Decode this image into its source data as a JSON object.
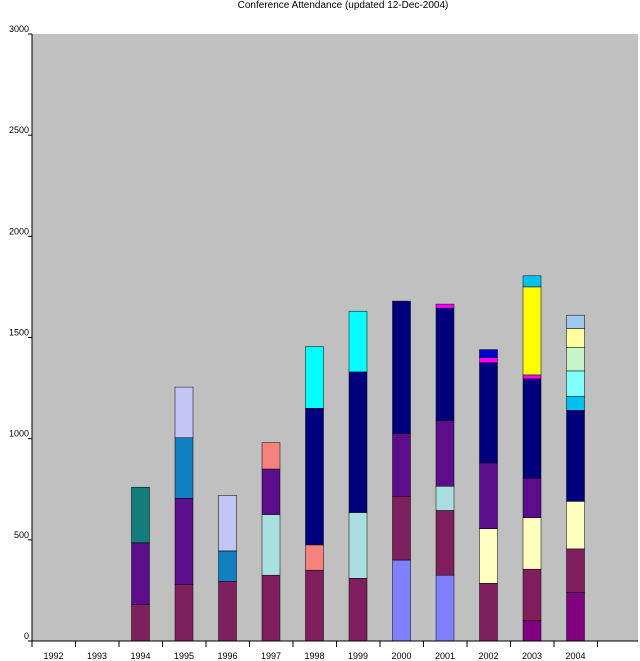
{
  "chart_data": {
    "type": "bar",
    "stacked": true,
    "title": "Conference Attendance (updated 12-Dec-2004)",
    "xlabel": "",
    "ylabel": "",
    "ylim": [
      0,
      3000
    ],
    "yticks": [
      0,
      500,
      1000,
      1500,
      2000,
      2500,
      3000
    ],
    "grid": false,
    "legend": "none",
    "colors": {
      "plot_background": "#c0c0c0",
      "axis": "#000000"
    },
    "categories": [
      "1992",
      "1993",
      "1994",
      "1995",
      "1996",
      "1997",
      "1998",
      "1999",
      "2000",
      "2001",
      "2002",
      "2003",
      "2004"
    ],
    "stacks": [
      {
        "category": "1992",
        "segments": []
      },
      {
        "category": "1993",
        "segments": []
      },
      {
        "category": "1994",
        "segments": [
          {
            "value": 180,
            "color": "#7f1f5e"
          },
          {
            "value": 305,
            "color": "#5c0d8a"
          },
          {
            "value": 275,
            "color": "#137d7d"
          }
        ]
      },
      {
        "category": "1995",
        "segments": [
          {
            "value": 280,
            "color": "#7f1f5e"
          },
          {
            "value": 425,
            "color": "#5c0d8a"
          },
          {
            "value": 300,
            "color": "#1080c0"
          },
          {
            "value": 250,
            "color": "#c4c4f5"
          }
        ]
      },
      {
        "category": "1996",
        "segments": [
          {
            "value": 295,
            "color": "#7f1f5e"
          },
          {
            "value": 150,
            "color": "#1080c0"
          },
          {
            "value": 275,
            "color": "#c4c4f5"
          }
        ]
      },
      {
        "category": "1997",
        "segments": [
          {
            "value": 325,
            "color": "#7f1f5e"
          },
          {
            "value": 300,
            "color": "#aadfe0"
          },
          {
            "value": 225,
            "color": "#5c0d8a"
          },
          {
            "value": 130,
            "color": "#f4837d"
          }
        ]
      },
      {
        "category": "1998",
        "segments": [
          {
            "value": 350,
            "color": "#7f1f5e"
          },
          {
            "value": 125,
            "color": "#f4837d"
          },
          {
            "value": 675,
            "color": "#00007f"
          },
          {
            "value": 305,
            "color": "#00ffff"
          }
        ]
      },
      {
        "category": "1999",
        "segments": [
          {
            "value": 310,
            "color": "#7f1f5e"
          },
          {
            "value": 325,
            "color": "#aadfe0"
          },
          {
            "value": 695,
            "color": "#00007f"
          },
          {
            "value": 300,
            "color": "#00ffff"
          }
        ]
      },
      {
        "category": "2000",
        "segments": [
          {
            "value": 400,
            "color": "#8080ff"
          },
          {
            "value": 315,
            "color": "#7f1f5e"
          },
          {
            "value": 310,
            "color": "#5c0d8a"
          },
          {
            "value": 655,
            "color": "#00007f"
          }
        ]
      },
      {
        "category": "2001",
        "segments": [
          {
            "value": 325,
            "color": "#8080ff"
          },
          {
            "value": 320,
            "color": "#7f1f5e"
          },
          {
            "value": 120,
            "color": "#aadfe0"
          },
          {
            "value": 325,
            "color": "#5c0d8a"
          },
          {
            "value": 555,
            "color": "#00007f"
          },
          {
            "value": 20,
            "color": "#ff00ff"
          }
        ]
      },
      {
        "category": "2002",
        "segments": [
          {
            "value": 285,
            "color": "#7f1f5e"
          },
          {
            "value": 270,
            "color": "#ffffc0"
          },
          {
            "value": 325,
            "color": "#5c0d8a"
          },
          {
            "value": 495,
            "color": "#00007f"
          },
          {
            "value": 25,
            "color": "#ff00ff"
          },
          {
            "value": 40,
            "color": "#0000cc"
          }
        ]
      },
      {
        "category": "2003",
        "segments": [
          {
            "value": 100,
            "color": "#800080"
          },
          {
            "value": 255,
            "color": "#7f1f5e"
          },
          {
            "value": 255,
            "color": "#ffffc0"
          },
          {
            "value": 195,
            "color": "#5c0d8a"
          },
          {
            "value": 490,
            "color": "#00007f"
          },
          {
            "value": 20,
            "color": "#ff00ff"
          },
          {
            "value": 435,
            "color": "#ffff00"
          },
          {
            "value": 55,
            "color": "#00c0f0"
          }
        ]
      },
      {
        "category": "2004",
        "segments": [
          {
            "value": 240,
            "color": "#800080"
          },
          {
            "value": 215,
            "color": "#7f1f5e"
          },
          {
            "value": 235,
            "color": "#ffffc0"
          },
          {
            "value": 450,
            "color": "#00007f"
          },
          {
            "value": 70,
            "color": "#00c0f0"
          },
          {
            "value": 125,
            "color": "#80ffff"
          },
          {
            "value": 115,
            "color": "#c8f5c8"
          },
          {
            "value": 95,
            "color": "#ffffa0"
          },
          {
            "value": 65,
            "color": "#a0c8f0"
          }
        ]
      }
    ]
  }
}
